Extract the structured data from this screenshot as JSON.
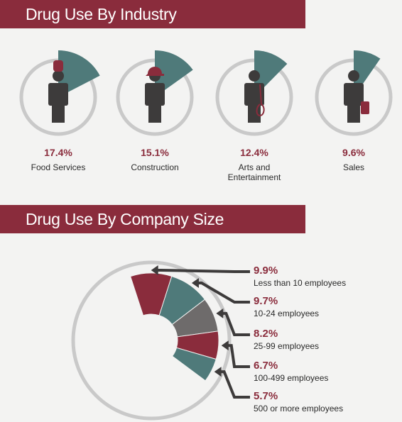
{
  "sections": {
    "industry_title": "Drug Use By Industry",
    "size_title": "Drug Use By Company Size"
  },
  "colors": {
    "brand_red": "#8a2c3c",
    "teal": "#4f7a7a",
    "gray": "#6e6b6b",
    "ring": "#c9c9c9",
    "figure": "#3d3b3b"
  },
  "chart_data": [
    {
      "type": "pie",
      "title": "Drug Use By Industry",
      "categories": [
        "Food Services",
        "Construction",
        "Arts and Entertainment",
        "Sales"
      ],
      "values": [
        17.4,
        15.1,
        12.4,
        9.6
      ],
      "value_labels": [
        "17.4%",
        "15.1%",
        "12.4%",
        "9.6%"
      ],
      "label_lines": [
        [
          "Food Services"
        ],
        [
          "Construction"
        ],
        [
          "Arts and",
          "Entertainment"
        ],
        [
          "Sales"
        ]
      ],
      "icons": [
        "chef-hat-icon",
        "hard-hat-icon",
        "guitar-icon",
        "suitcase-icon"
      ]
    },
    {
      "type": "pie",
      "title": "Drug Use By Company Size",
      "categories": [
        "Less than 10 employees",
        "10-24 employees",
        "25-99 employees",
        "100-499 employees",
        "500 or more employees"
      ],
      "values": [
        9.9,
        9.7,
        8.2,
        6.7,
        5.7
      ],
      "value_labels": [
        "9.9%",
        "9.7%",
        "8.2%",
        "6.7%",
        "5.7%"
      ],
      "colors": [
        "#8a2c3c",
        "#4f7a7a",
        "#6e6b6b",
        "#8a2c3c",
        "#4f7a7a"
      ]
    }
  ]
}
